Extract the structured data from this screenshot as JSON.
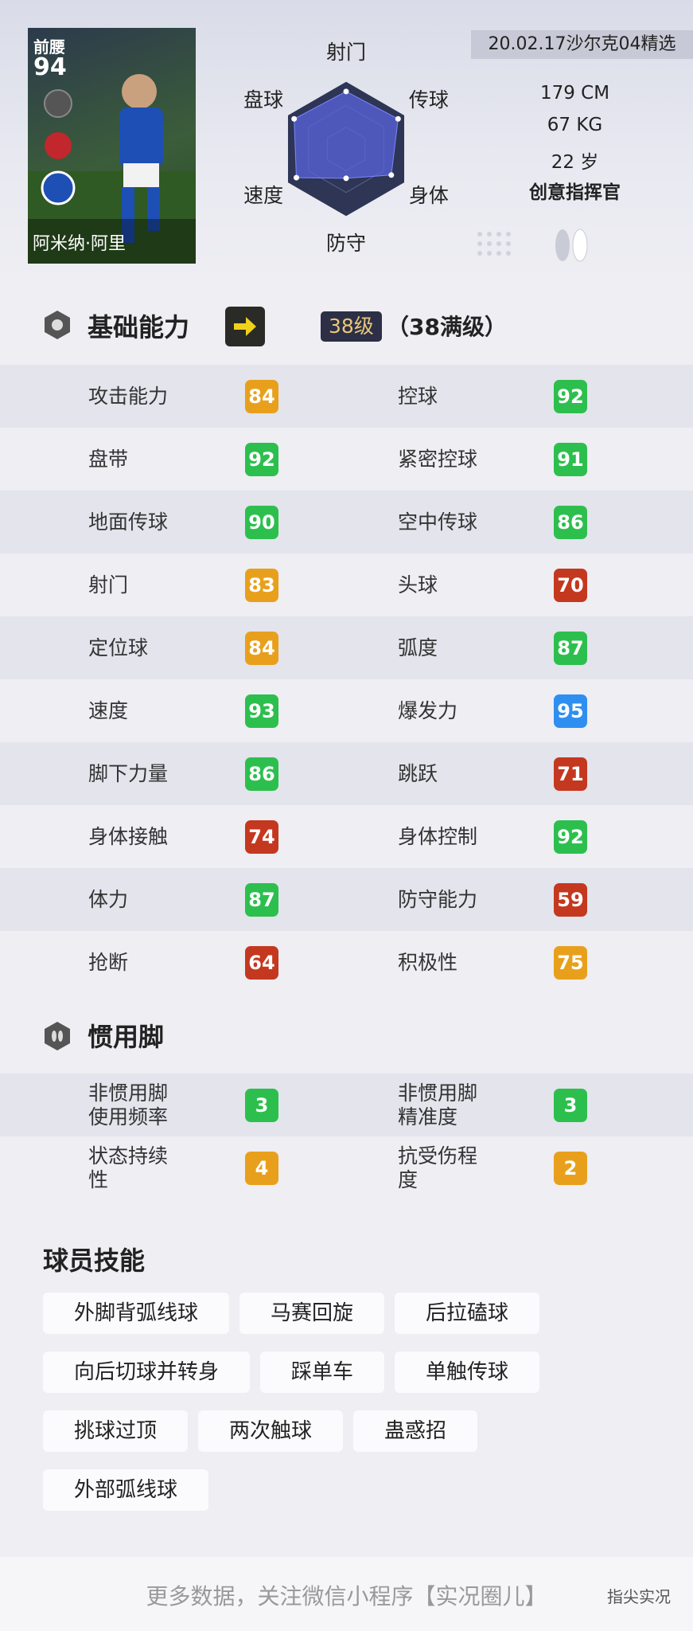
{
  "card": {
    "position": "前腰",
    "rating": "94",
    "name": "阿米纳·阿里"
  },
  "header": {
    "version": "20.02.17沙尔克04精选",
    "height": "179 CM",
    "weight": "67 KG",
    "age": "22 岁",
    "playstyle": "创意指挥官"
  },
  "radar": {
    "axes": [
      "射门",
      "传球",
      "身体",
      "防守",
      "速度",
      "盘球"
    ],
    "values": [
      88,
      92,
      80,
      45,
      88,
      92
    ],
    "range": [
      0,
      100
    ]
  },
  "abilities": {
    "title": "基础能力",
    "level": "38级",
    "max_level": "（38满级）",
    "stats": [
      {
        "name": "攻击能力",
        "value": 84,
        "color": "#e8a01c"
      },
      {
        "name": "控球",
        "value": 92,
        "color": "#2dbf4e"
      },
      {
        "name": "盘带",
        "value": 92,
        "color": "#2dbf4e"
      },
      {
        "name": "紧密控球",
        "value": 91,
        "color": "#2dbf4e"
      },
      {
        "name": "地面传球",
        "value": 90,
        "color": "#2dbf4e"
      },
      {
        "name": "空中传球",
        "value": 86,
        "color": "#2dbf4e"
      },
      {
        "name": "射门",
        "value": 83,
        "color": "#e8a01c"
      },
      {
        "name": "头球",
        "value": 70,
        "color": "#c4381f"
      },
      {
        "name": "定位球",
        "value": 84,
        "color": "#e8a01c"
      },
      {
        "name": "弧度",
        "value": 87,
        "color": "#2dbf4e"
      },
      {
        "name": "速度",
        "value": 93,
        "color": "#2dbf4e"
      },
      {
        "name": "爆发力",
        "value": 95,
        "color": "#2f8ff0"
      },
      {
        "name": "脚下力量",
        "value": 86,
        "color": "#2dbf4e"
      },
      {
        "name": "跳跃",
        "value": 71,
        "color": "#c4381f"
      },
      {
        "name": "身体接触",
        "value": 74,
        "color": "#c4381f"
      },
      {
        "name": "身体控制",
        "value": 92,
        "color": "#2dbf4e"
      },
      {
        "name": "体力",
        "value": 87,
        "color": "#2dbf4e"
      },
      {
        "name": "防守能力",
        "value": 59,
        "color": "#c4381f"
      },
      {
        "name": "抢断",
        "value": 64,
        "color": "#c4381f"
      },
      {
        "name": "积极性",
        "value": 75,
        "color": "#e8a01c"
      }
    ]
  },
  "foot": {
    "title": "惯用脚",
    "stats": [
      {
        "name": "非惯用脚使用频率",
        "value": 3,
        "color": "#2dbf4e"
      },
      {
        "name": "非惯用脚精准度",
        "value": 3,
        "color": "#2dbf4e"
      },
      {
        "name": "状态持续性",
        "value": 4,
        "color": "#e8a01c"
      },
      {
        "name": "抗受伤程度",
        "value": 2,
        "color": "#e8a01c"
      }
    ]
  },
  "skills": {
    "title": "球员技能",
    "items": [
      "外脚背弧线球",
      "马赛回旋",
      "后拉磕球",
      "向后切球并转身",
      "踩单车",
      "单触传球",
      "挑球过顶",
      "两次触球",
      "蛊惑招",
      "外部弧线球"
    ]
  },
  "footer": {
    "text": "更多数据，关注微信小程序【实况圈儿】",
    "watermark": "指尖实况"
  }
}
